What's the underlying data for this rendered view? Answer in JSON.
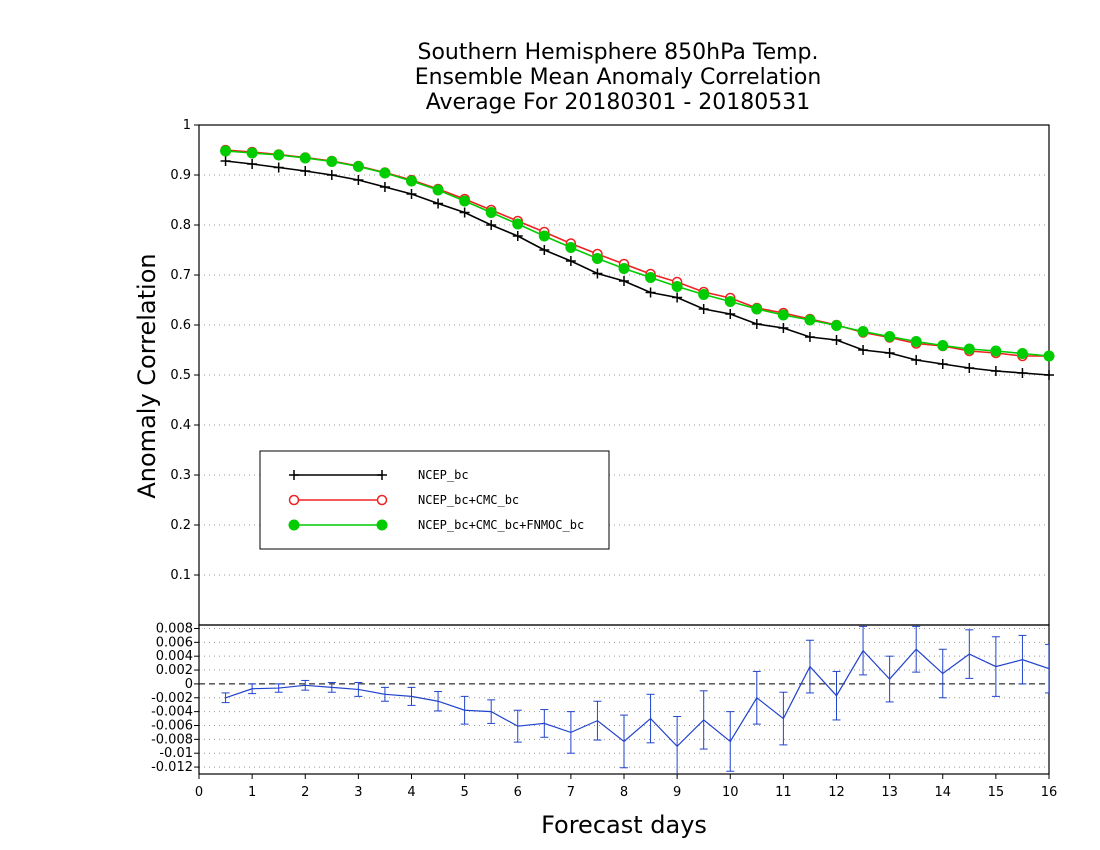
{
  "chart_data": [
    {
      "type": "line",
      "title": [
        "Southern Hemisphere 850hPa Temp.",
        "Ensemble Mean Anomaly Correlation",
        "Average For 20180301 - 20180531"
      ],
      "xlabel": "Forecast days",
      "ylabel": "Anomaly Correlation",
      "xlim": [
        0,
        16
      ],
      "ylim": [
        0,
        1
      ],
      "xticks": [
        "0",
        "1",
        "2",
        "3",
        "4",
        "5",
        "6",
        "7",
        "8",
        "9",
        "10",
        "11",
        "12",
        "13",
        "14",
        "15",
        "16"
      ],
      "yticks": [
        "0.1",
        "0.2",
        "0.3",
        "0.4",
        "0.5",
        "0.6",
        "0.7",
        "0.8",
        "0.9",
        "1"
      ],
      "grid": true,
      "legend_position": "center-left",
      "x": [
        0.5,
        1,
        1.5,
        2,
        2.5,
        3,
        3.5,
        4,
        4.5,
        5,
        5.5,
        6,
        6.5,
        7,
        7.5,
        8,
        8.5,
        9,
        9.5,
        10,
        10.5,
        11,
        11.5,
        12,
        12.5,
        13,
        13.5,
        14,
        14.5,
        15,
        15.5,
        16
      ],
      "series": [
        {
          "name": "NCEP_bc",
          "color": "#000000",
          "marker": "plus",
          "values": [
            0.928,
            0.922,
            0.915,
            0.908,
            0.9,
            0.89,
            0.876,
            0.862,
            0.843,
            0.825,
            0.8,
            0.778,
            0.75,
            0.728,
            0.703,
            0.688,
            0.665,
            0.655,
            0.632,
            0.622,
            0.602,
            0.594,
            0.576,
            0.57,
            0.55,
            0.544,
            0.53,
            0.522,
            0.514,
            0.508,
            0.504,
            0.5
          ]
        },
        {
          "name": "NCEP_bc+CMC_bc",
          "color": "#ee2222",
          "marker": "open-circle",
          "values": [
            0.95,
            0.946,
            0.941,
            0.935,
            0.928,
            0.918,
            0.905,
            0.89,
            0.872,
            0.852,
            0.83,
            0.808,
            0.786,
            0.763,
            0.742,
            0.722,
            0.702,
            0.686,
            0.666,
            0.654,
            0.634,
            0.624,
            0.612,
            0.6,
            0.585,
            0.575,
            0.563,
            0.558,
            0.548,
            0.544,
            0.538,
            0.538
          ]
        },
        {
          "name": "NCEP_bc+CMC_bc+FNMOC_bc",
          "color": "#00cc00",
          "marker": "filled-circle",
          "values": [
            0.948,
            0.944,
            0.94,
            0.934,
            0.927,
            0.917,
            0.904,
            0.888,
            0.87,
            0.848,
            0.825,
            0.802,
            0.778,
            0.755,
            0.733,
            0.713,
            0.695,
            0.677,
            0.661,
            0.647,
            0.632,
            0.62,
            0.61,
            0.599,
            0.587,
            0.577,
            0.567,
            0.559,
            0.552,
            0.548,
            0.543,
            0.538
          ]
        }
      ]
    },
    {
      "type": "line",
      "description_of_series": "difference with error bars",
      "xlim": [
        0,
        16
      ],
      "ylim": [
        -0.013,
        0.0085
      ],
      "yticks": [
        "0.008",
        "0.006",
        "0.004",
        "0.002",
        "0",
        "-0.002",
        "-0.004",
        "-0.006",
        "-0.008",
        "-0.01",
        "-0.012"
      ],
      "color": "#2244cc",
      "x": [
        0.5,
        1,
        1.5,
        2,
        2.5,
        3,
        3.5,
        4,
        4.5,
        5,
        5.5,
        6,
        6.5,
        7,
        7.5,
        8,
        8.5,
        9,
        9.5,
        10,
        10.5,
        11,
        11.5,
        12,
        12.5,
        13,
        13.5,
        14,
        14.5,
        15,
        15.5,
        16
      ],
      "values": [
        -0.002,
        -0.0007,
        -0.0006,
        -0.0002,
        -0.0005,
        -0.0008,
        -0.0015,
        -0.0018,
        -0.0025,
        -0.0038,
        -0.004,
        -0.0061,
        -0.0057,
        -0.007,
        -0.0053,
        -0.0083,
        -0.005,
        -0.009,
        -0.0052,
        -0.0083,
        -0.002,
        -0.005,
        0.0025,
        -0.0017,
        0.0048,
        0.0007,
        0.005,
        0.0015,
        0.0043,
        0.0025,
        0.0035,
        0.0022
      ],
      "err": [
        0.0007,
        0.0007,
        0.0006,
        0.0007,
        0.0007,
        0.001,
        0.001,
        0.0013,
        0.0014,
        0.002,
        0.0017,
        0.0023,
        0.002,
        0.003,
        0.0028,
        0.0038,
        0.0035,
        0.0043,
        0.0042,
        0.0043,
        0.0038,
        0.0038,
        0.0038,
        0.0035,
        0.0035,
        0.0033,
        0.0033,
        0.0035,
        0.0035,
        0.0043,
        0.0035,
        0.0035
      ]
    }
  ]
}
